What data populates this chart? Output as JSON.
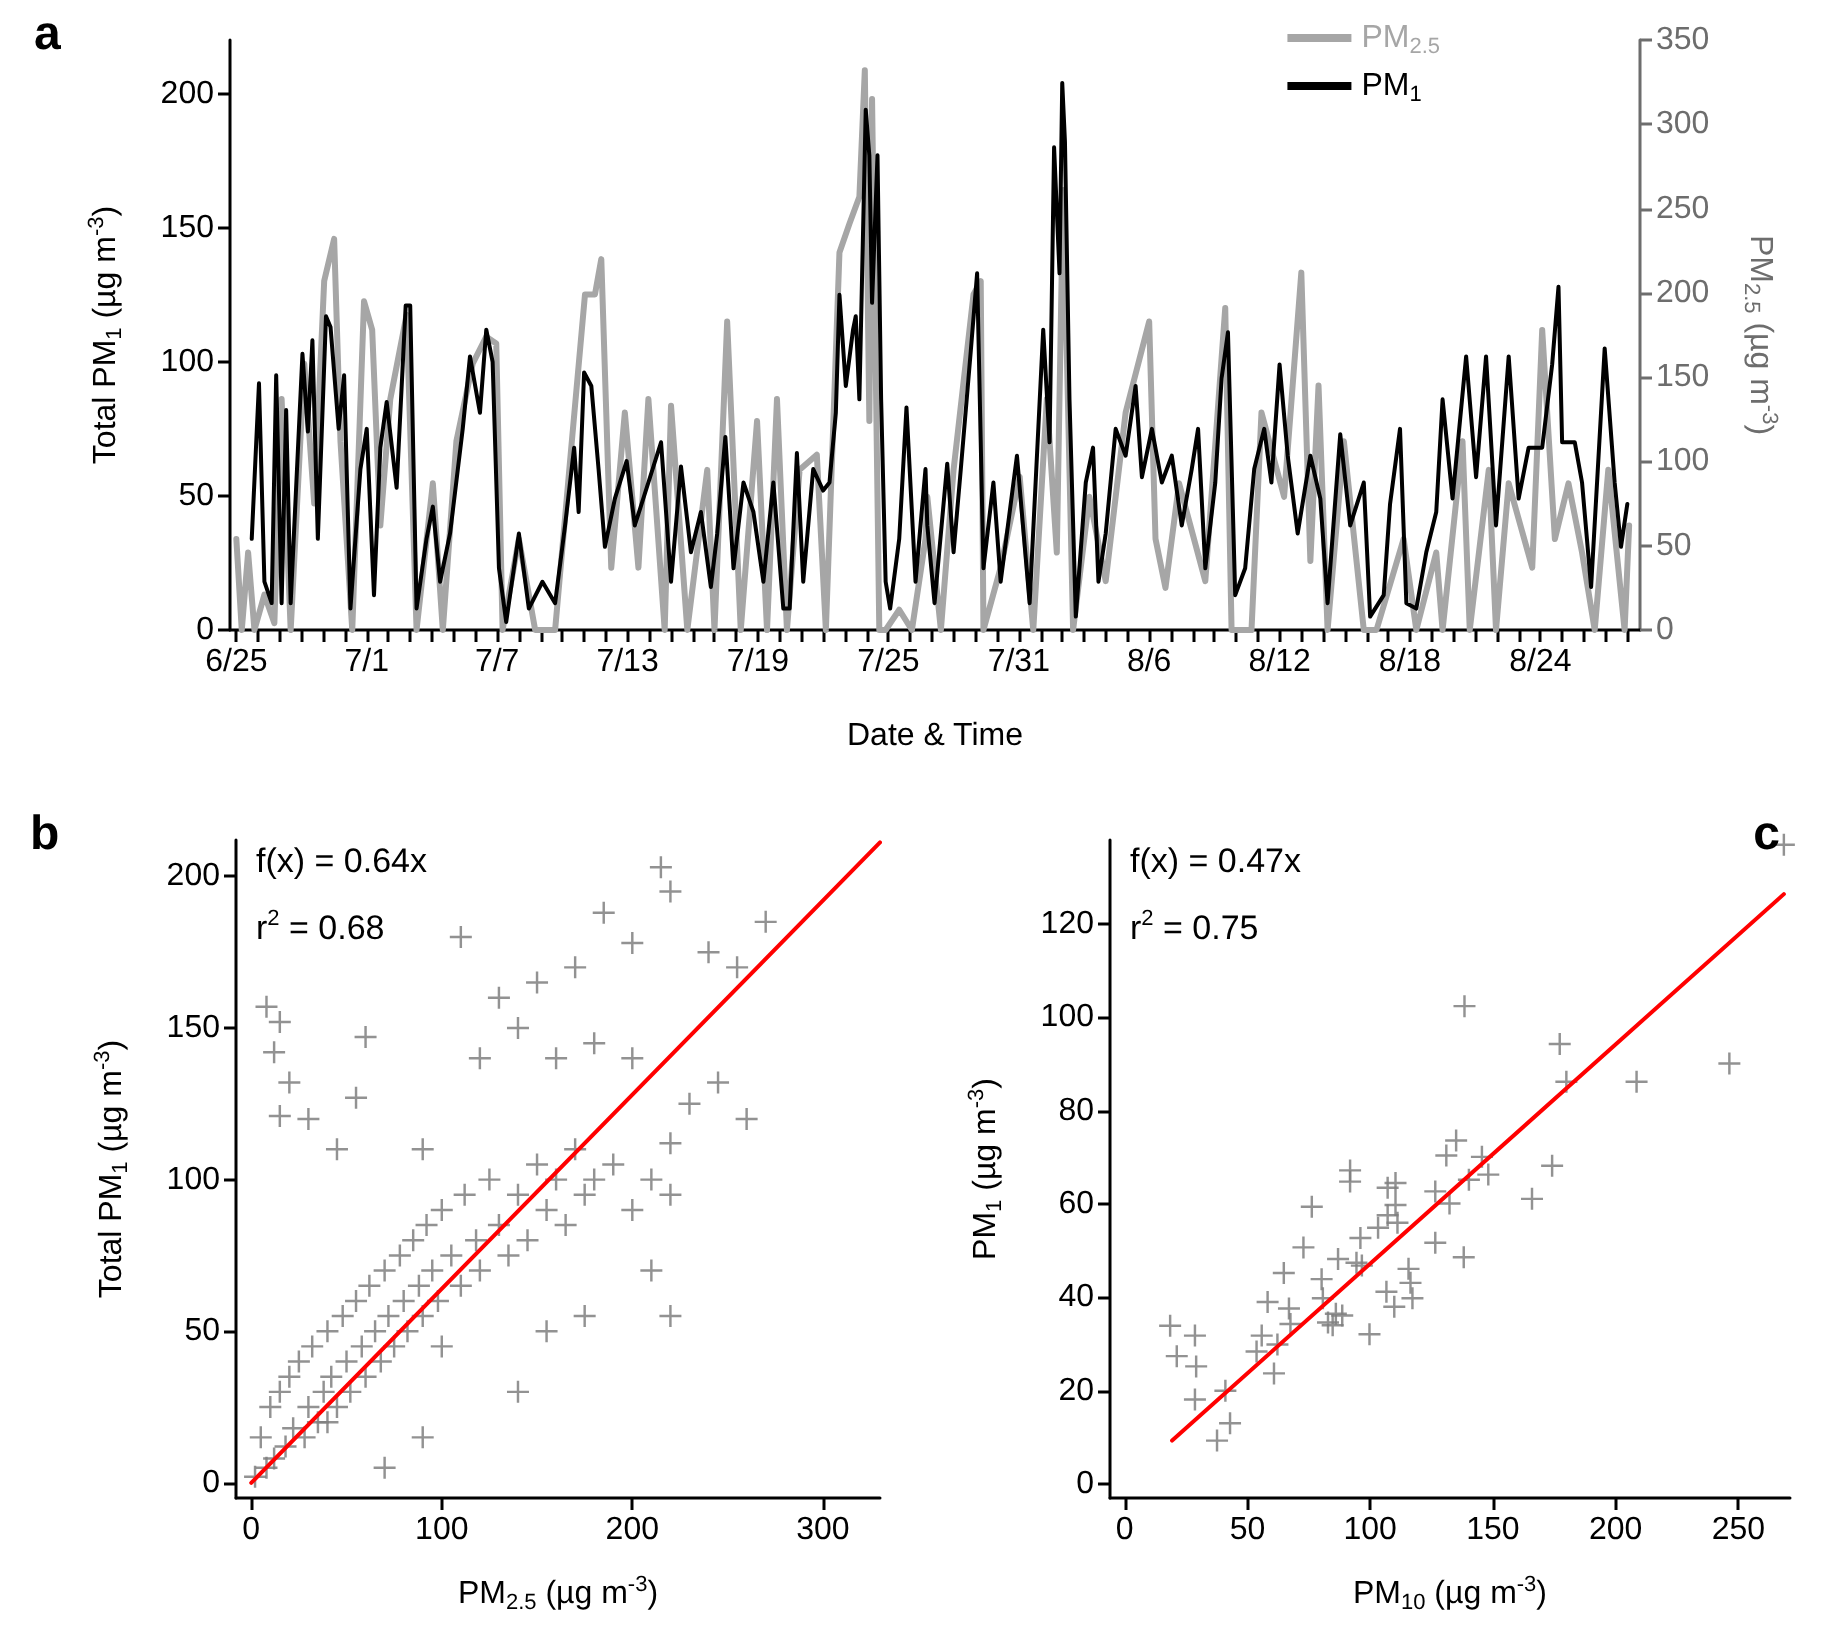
{
  "chart_data": [
    {
      "type": "line",
      "title": "a",
      "xlabel": "Date & Time",
      "ylabel": "Total PM$_{1}$ (µg m$^{-3}$)",
      "y2label": "PM$_{2.5}$ (µg m$^{-3}$)",
      "legend": "top right",
      "marker": "none",
      "line_style": "solid",
      "xlim": [
        "--06-24T17:00",
        "--08-28T14:00"
      ],
      "ylim": [
        0,
        220
      ],
      "yticks": [
        0,
        50,
        100,
        150,
        200
      ],
      "y2lim": [
        0,
        350
      ],
      "y2ticks": [
        0,
        50,
        100,
        150,
        200,
        250,
        300,
        350
      ],
      "xticks": [
        {
          "value": "--06-25",
          "label": "6/25"
        },
        {
          "value": "--06-26",
          "label": null
        },
        {
          "value": "--06-27",
          "label": null
        },
        {
          "value": "--06-28",
          "label": null
        },
        {
          "value": "--06-29",
          "label": null
        },
        {
          "value": "--06-30",
          "label": null
        },
        {
          "value": "--07-01",
          "label": "7/1"
        },
        {
          "value": "--07-02",
          "label": null
        },
        {
          "value": "--07-03",
          "label": null
        },
        {
          "value": "--07-04",
          "label": null
        },
        {
          "value": "--07-05",
          "label": null
        },
        {
          "value": "--07-06",
          "label": null
        },
        {
          "value": "--07-07",
          "label": "7/7"
        },
        {
          "value": "--07-08",
          "label": null
        },
        {
          "value": "--07-09",
          "label": null
        },
        {
          "value": "--07-10",
          "label": null
        },
        {
          "value": "--07-11",
          "label": null
        },
        {
          "value": "--07-12",
          "label": null
        },
        {
          "value": "--07-13",
          "label": "7/13"
        },
        {
          "value": "--07-14",
          "label": null
        },
        {
          "value": "--07-15",
          "label": null
        },
        {
          "value": "--07-16",
          "label": null
        },
        {
          "value": "--07-17",
          "label": null
        },
        {
          "value": "--07-18",
          "label": null
        },
        {
          "value": "--07-19",
          "label": "7/19"
        },
        {
          "value": "--07-20",
          "label": null
        },
        {
          "value": "--07-21",
          "label": null
        },
        {
          "value": "--07-22",
          "label": null
        },
        {
          "value": "--07-23",
          "label": null
        },
        {
          "value": "--07-24",
          "label": null
        },
        {
          "value": "--07-25",
          "label": "7/25"
        },
        {
          "value": "--07-26",
          "label": null
        },
        {
          "value": "--07-27",
          "label": null
        },
        {
          "value": "--07-28",
          "label": null
        },
        {
          "value": "--07-29",
          "label": null
        },
        {
          "value": "--07-30",
          "label": null
        },
        {
          "value": "--07-31",
          "label": "7/31"
        },
        {
          "value": "--08-01",
          "label": null
        },
        {
          "value": "--08-02",
          "label": null
        },
        {
          "value": "--08-03",
          "label": null
        },
        {
          "value": "--08-04",
          "label": null
        },
        {
          "value": "--08-05",
          "label": null
        },
        {
          "value": "--08-06",
          "label": "8/6"
        },
        {
          "value": "--08-07",
          "label": null
        },
        {
          "value": "--08-08",
          "label": null
        },
        {
          "value": "--08-09",
          "label": null
        },
        {
          "value": "--08-10",
          "label": null
        },
        {
          "value": "--08-11",
          "label": null
        },
        {
          "value": "--08-12",
          "label": "8/12"
        },
        {
          "value": "--08-13",
          "label": null
        },
        {
          "value": "--08-14",
          "label": null
        },
        {
          "value": "--08-15",
          "label": null
        },
        {
          "value": "--08-16",
          "label": null
        },
        {
          "value": "--08-17",
          "label": null
        },
        {
          "value": "--08-18",
          "label": "8/18"
        },
        {
          "value": "--08-19",
          "label": null
        },
        {
          "value": "--08-20",
          "label": null
        },
        {
          "value": "--08-21",
          "label": null
        },
        {
          "value": "--08-22",
          "label": null
        },
        {
          "value": "--08-23",
          "label": null
        },
        {
          "value": "--08-24",
          "label": "8/24"
        },
        {
          "value": "--08-25",
          "label": null
        },
        {
          "value": "--08-26",
          "label": null
        },
        {
          "value": "--08-27",
          "label": null
        },
        {
          "value": "--08-28",
          "label": null
        }
      ],
      "series": [
        {
          "name": "PM$_{2.5}$",
          "color": "#a6a6a6",
          "axis": "y2",
          "x": [
            "--06-25T00:00",
            "--06-25T06:00",
            "--06-25T13:00",
            "--06-25T20:00",
            "--06-26T07:00",
            "--06-26T18:00",
            "--06-27T02:00",
            "--06-27T12:00",
            "--06-28T03:00",
            "--06-28T14:00",
            "--06-29T01:00",
            "--06-29T12:00",
            "--06-29T19:00",
            "--06-30T08:00",
            "--06-30T21:00",
            "--07-01T06:00",
            "--07-01T15:00",
            "--07-02T02:00",
            "--07-02T20:00",
            "--07-03T07:00",
            "--07-04T01:00",
            "--07-04T12:00",
            "--07-05T03:00",
            "--07-05T21:00",
            "--07-06T12:00",
            "--07-06T23:00",
            "--07-07T06:00",
            "--07-08T00:00",
            "--07-08T18:00",
            "--07-09T16:00",
            "--07-10T07:00",
            "--07-11T01:00",
            "--07-11T12:00",
            "--07-11T19:00",
            "--07-12T06:00",
            "--07-12T21:00",
            "--07-13T12:00",
            "--07-13T23:00",
            "--07-14T17:00",
            "--07-15T00:00",
            "--07-15T18:00",
            "--07-16T16:00",
            "--07-17T00:00",
            "--07-17T14:00",
            "--07-18T05:00",
            "--07-18T23:00",
            "--07-19T10:00",
            "--07-19T21:00",
            "--07-20T08:00",
            "--07-20T22:00",
            "--07-21T17:00",
            "--07-22T03:00",
            "--07-22T18:00",
            "--07-23T05:00",
            "--07-23T16:00",
            "--07-23T22:00",
            "--07-24T03:00",
            "--07-24T06:00",
            "--07-24T14:00",
            "--07-24T21:00",
            "--07-25T12:00",
            "--07-26T02:00",
            "--07-26T17:00",
            "--07-26T19:00",
            "--07-27T10:00",
            "--07-28T00:00",
            "--07-28T22:00",
            "--07-29T06:00",
            "--07-29T09:00",
            "--07-30T04:00",
            "--07-31T01:00",
            "--07-31T16:00",
            "--08-01T07:00",
            "--08-01T18:00",
            "--08-02T01:00",
            "--08-02T12:00",
            "--08-03T06:00",
            "--08-04T00:00",
            "--08-04T22:00",
            "--08-06T00:00",
            "--08-06T07:00",
            "--08-06T18:00",
            "--08-07T09:00",
            "--08-08T14:00",
            "--08-09T12:00",
            "--08-09T19:00",
            "--08-10T17:00",
            "--08-11T04:00",
            "--08-12T05:00",
            "--08-13T00:00",
            "--08-13T10:00",
            "--08-13T19:00",
            "--08-14T05:00",
            "--08-14T23:00",
            "--08-15T21:00",
            "--08-16T11:00",
            "--08-17T17:00",
            "--08-18T07:00",
            "--08-19T05:00",
            "--08-19T12:00",
            "--08-20T10:00",
            "--08-20T18:00",
            "--08-21T15:00",
            "--08-21T23:00",
            "--08-22T13:00",
            "--08-23T15:00",
            "--08-24T02:00",
            "--08-24T16:00",
            "--08-25T07:00",
            "--08-25T22:00",
            "--08-26T12:00",
            "--08-27T03:00",
            "--08-27T21:00",
            "--08-28T02:00"
          ],
          "values": [
            54,
            0,
            46,
            0,
            21,
            4,
            137,
            0,
            158,
            75,
            207,
            232,
            112,
            0,
            195,
            178,
            62,
            137,
            187,
            0,
            87,
            0,
            112,
            158,
            174,
            170,
            0,
            54,
            0,
            0,
            91,
            199,
            199,
            220,
            37,
            129,
            37,
            137,
            0,
            133,
            0,
            95,
            0,
            183,
            0,
            124,
            0,
            137,
            0,
            95,
            104,
            0,
            224,
            241,
            257,
            332,
            124,
            315,
            0,
            0,
            12,
            0,
            54,
            79,
            0,
            95,
            199,
            207,
            0,
            37,
            91,
            0,
            137,
            46,
            261,
            0,
            79,
            29,
            129,
            183,
            54,
            25,
            87,
            29,
            191,
            0,
            0,
            129,
            79,
            212,
            41,
            145,
            0,
            112,
            0,
            0,
            54,
            0,
            46,
            0,
            112,
            0,
            95,
            0,
            87,
            37,
            178,
            54,
            87,
            46,
            0,
            95,
            0,
            62
          ]
        },
        {
          "name": "PM$_{1}$",
          "color": "#000000",
          "x": [
            "--06-25T17:00",
            "--06-26T01:00",
            "--06-26T07:00",
            "--06-26T15:00",
            "--06-26T20:00",
            "--06-27T02:00",
            "--06-27T07:00",
            "--06-27T12:00",
            "--06-28T01:00",
            "--06-28T07:00",
            "--06-28T12:00",
            "--06-28T18:00",
            "--06-29T03:00",
            "--06-29T08:00",
            "--06-29T17:00",
            "--06-29T23:00",
            "--06-30T06:00",
            "--06-30T17:00",
            "--07-01T00:00",
            "--07-01T08:00",
            "--07-01T15:00",
            "--07-01T22:00",
            "--07-02T09:00",
            "--07-02T19:00",
            "--07-03T00:00",
            "--07-03T07:00",
            "--07-03T18:00",
            "--07-04T01:00",
            "--07-04T09:00",
            "--07-04T20:00",
            "--07-05T10:00",
            "--07-05T18:00",
            "--07-06T05:00",
            "--07-06T12:00",
            "--07-06T19:00",
            "--07-07T02:00",
            "--07-07T10:00",
            "--07-08T00:00",
            "--07-08T11:00",
            "--07-09T02:00",
            "--07-09T16:00",
            "--07-10T03:00",
            "--07-10T13:00",
            "--07-10T18:00",
            "--07-11T00:00",
            "--07-11T08:00",
            "--07-11T16:00",
            "--07-11T23:00",
            "--07-12T10:00",
            "--07-12T23:00",
            "--07-13T08:00",
            "--07-13T23:00",
            "--07-14T13:00",
            "--07-15T00:00",
            "--07-15T11:00",
            "--07-15T22:00",
            "--07-16T09:00",
            "--07-16T20:00",
            "--07-17T03:00",
            "--07-17T12:00",
            "--07-17T21:00",
            "--07-18T08:00",
            "--07-18T19:00",
            "--07-19T06:00",
            "--07-19T17:00",
            "--07-20T04:00",
            "--07-20T11:00",
            "--07-20T19:00",
            "--07-21T02:00",
            "--07-21T13:00",
            "--07-22T00:00",
            "--07-22T07:00",
            "--07-22T14:00",
            "--07-22T18:00",
            "--07-23T01:00",
            "--07-23T09:00",
            "--07-23T12:00",
            "--07-23T16:00",
            "--07-23T23:00",
            "--07-24T03:00",
            "--07-24T06:00",
            "--07-24T12:00",
            "--07-24T16:00",
            "--07-24T21:00",
            "--07-25T02:00",
            "--07-25T12:00",
            "--07-25T20:00",
            "--07-26T06:00",
            "--07-26T17:00",
            "--07-26T19:00",
            "--07-27T03:00",
            "--07-27T17:00",
            "--07-28T00:00",
            "--07-28T08:00",
            "--07-28T19:00",
            "--07-29T02:00",
            "--07-29T09:00",
            "--07-29T20:00",
            "--07-30T04:00",
            "--07-30T22:00",
            "--07-31T12:00",
            "--08-01T03:00",
            "--08-01T10:00",
            "--08-01T15:00",
            "--08-01T21:00",
            "--08-02T00:00",
            "--08-02T03:00",
            "--08-02T08:00",
            "--08-02T15:00",
            "--08-03T02:00",
            "--08-03T10:00",
            "--08-03T16:00",
            "--08-04T00:00",
            "--08-04T11:00",
            "--08-04T22:00",
            "--08-05T09:00",
            "--08-05T16:00",
            "--08-06T03:00",
            "--08-06T14:00",
            "--08-07T01:00",
            "--08-07T12:00",
            "--08-07T23:00",
            "--08-08T06:00",
            "--08-08T14:00",
            "--08-09T01:00",
            "--08-09T08:00",
            "--08-09T15:00",
            "--08-09T23:00",
            "--08-10T10:00",
            "--08-10T20:00",
            "--08-11T07:00",
            "--08-11T15:00",
            "--08-12T00:00",
            "--08-12T09:00",
            "--08-12T20:00",
            "--08-13T10:00",
            "--08-13T21:00",
            "--08-14T05:00",
            "--08-14T19:00",
            "--08-15T06:00",
            "--08-15T21:00",
            "--08-16T04:00",
            "--08-16T19:00",
            "--08-17T02:00",
            "--08-17T13:00",
            "--08-17T20:00",
            "--08-18T07:00",
            "--08-18T18:00",
            "--08-19T05:00",
            "--08-19T12:00",
            "--08-19T23:00",
            "--08-20T14:00",
            "--08-21T01:00",
            "--08-21T12:00",
            "--08-21T23:00",
            "--08-22T13:00",
            "--08-23T00:00",
            "--08-23T11:00",
            "--08-24T02:00",
            "--08-24T13:00",
            "--08-24T20:00",
            "--08-25T00:00",
            "--08-25T14:00",
            "--08-25T22:00",
            "--08-26T08:00",
            "--08-26T23:00",
            "--08-27T10:00",
            "--08-27T17:00",
            "--08-28T00:00"
          ],
          "values": [
            34,
            92,
            18,
            10,
            95,
            10,
            82,
            10,
            103,
            74,
            108,
            34,
            117,
            113,
            75,
            95,
            8,
            60,
            75,
            13,
            68,
            85,
            53,
            121,
            121,
            8,
            34,
            46,
            18,
            36,
            75,
            102,
            81,
            112,
            100,
            23,
            3,
            36,
            8,
            18,
            10,
            39,
            68,
            44,
            96,
            91,
            60,
            31,
            49,
            63,
            39,
            55,
            70,
            18,
            61,
            29,
            44,
            16,
            36,
            72,
            23,
            55,
            44,
            18,
            55,
            8,
            8,
            66,
            18,
            60,
            52,
            55,
            81,
            125,
            91,
            112,
            117,
            86,
            194,
            177,
            122,
            177,
            86,
            18,
            8,
            34,
            83,
            18,
            60,
            39,
            10,
            62,
            29,
            60,
            104,
            133,
            23,
            55,
            18,
            65,
            10,
            112,
            70,
            180,
            133,
            204,
            182,
            86,
            5,
            55,
            68,
            18,
            36,
            75,
            65,
            91,
            57,
            75,
            55,
            65,
            39,
            60,
            75,
            23,
            55,
            94,
            111,
            13,
            23,
            60,
            75,
            55,
            99,
            65,
            36,
            65,
            49,
            10,
            73,
            39,
            55,
            5,
            13,
            47,
            75,
            10,
            8,
            29,
            44,
            86,
            49,
            102,
            57,
            102,
            39,
            102,
            49,
            68,
            68,
            99,
            128,
            70,
            70,
            55,
            16,
            105,
            55,
            31,
            47
          ]
        }
      ]
    },
    {
      "type": "scatter",
      "title": "b",
      "xlabel": "PM$_{2.5}$ (µg m$^{-3}$)",
      "ylabel": "Total PM$_{1}$ (µg m$^{-3}$)",
      "marker": "cross",
      "legend": false,
      "annotations": [
        "f(x) = 0.64x",
        "r$^{2}$ = 0.68"
      ],
      "xlim": [
        -8,
        330
      ],
      "xticks": [
        0,
        100,
        200,
        300
      ],
      "ylim": [
        -5,
        212
      ],
      "yticks": [
        0,
        50,
        100,
        150,
        200
      ],
      "series": [
        {
          "color": "#7f7f7f",
          "x": [
            2,
            5,
            8,
            10,
            12,
            15,
            18,
            20,
            22,
            25,
            28,
            30,
            32,
            35,
            38,
            40,
            42,
            45,
            48,
            50,
            52,
            55,
            58,
            60,
            62,
            65,
            68,
            70,
            72,
            75,
            78,
            80,
            82,
            85,
            88,
            90,
            92,
            95,
            98,
            100,
            105,
            110,
            112,
            118,
            120,
            125,
            130,
            135,
            140,
            145,
            150,
            155,
            160,
            165,
            170,
            175,
            180,
            190,
            200,
            210,
            220,
            8,
            12,
            15,
            20,
            15,
            30,
            60,
            55,
            45,
            90,
            110,
            130,
            150,
            170,
            185,
            200,
            215,
            220,
            240,
            255,
            270,
            260,
            245,
            230,
            220,
            210,
            220,
            175,
            155,
            140,
            100,
            90,
            70,
            40,
            200,
            180,
            160,
            140,
            120
          ],
          "values": [
            2,
            15,
            5,
            25,
            8,
            30,
            12,
            35,
            18,
            40,
            15,
            25,
            45,
            20,
            30,
            50,
            35,
            25,
            55,
            40,
            30,
            60,
            45,
            35,
            65,
            50,
            40,
            70,
            55,
            45,
            75,
            60,
            50,
            80,
            65,
            55,
            85,
            70,
            60,
            90,
            75,
            65,
            95,
            80,
            70,
            100,
            85,
            75,
            95,
            80,
            105,
            90,
            100,
            85,
            110,
            95,
            100,
            105,
            90,
            100,
            95,
            157,
            142,
            152,
            132,
            121,
            120,
            147,
            127,
            110,
            110,
            180,
            160,
            165,
            170,
            188,
            178,
            203,
            195,
            175,
            170,
            185,
            120,
            132,
            125,
            112,
            70,
            55,
            55,
            50,
            30,
            45,
            15,
            5,
            20,
            140,
            145,
            140,
            150,
            140
          ]
        },
        {
          "type": "line",
          "color": "#ff0000",
          "marker": "none",
          "x": [
            0,
            330
          ],
          "values": [
            0,
            211.2
          ]
        }
      ]
    },
    {
      "type": "scatter",
      "title": "c",
      "xlabel": "PM$_{10}$ (µg m$^{-3}$)",
      "ylabel": "PM$_{1}$ (µg m$^{-3}$)",
      "marker": "cross",
      "legend": false,
      "annotations": [
        "f(x) = 0.47x",
        "r$^{2}$ = 0.75"
      ],
      "xlim": [
        -6,
        271
      ],
      "xticks": [
        0,
        50,
        100,
        150,
        200,
        250
      ],
      "ylim": [
        -3,
        138
      ],
      "yticks": [
        0,
        20,
        40,
        60,
        80,
        100,
        120
      ],
      "series": [
        {
          "color": "#7f7f7f",
          "x": [
            18.5,
            21.2,
            28.6,
            29.1,
            28.6,
            37.6,
            41,
            42.9,
            53.7,
            55.8,
            58.2,
            60.8,
            62.2,
            64.8,
            66.9,
            67.5,
            72.8,
            76.2,
            80.2,
            80.7,
            82.8,
            84.7,
            86,
            86.9,
            88.6,
            91.8,
            91.8,
            94.4,
            96,
            96.6,
            99.7,
            103.2,
            106.6,
            107.1,
            107.1,
            109.8,
            110.3,
            110.3,
            111.1,
            115.6,
            116.4,
            117.2,
            126.5,
            126.5,
            131,
            132.3,
            135,
            138.1,
            138.4,
            140.2,
            145.5,
            148.1,
            165.9,
            174.1,
            177.2,
            179.9,
            208.5,
            246.3,
            268.5
          ],
          "values": [
            33.9,
            27.4,
            31.8,
            25.2,
            18.1,
            9.3,
            20,
            13,
            28.4,
            31.8,
            39,
            23.7,
            29.9,
            45.2,
            37.6,
            34.3,
            50.7,
            59.4,
            43.9,
            39.8,
            34.6,
            34,
            36.5,
            48.2,
            36.1,
            67.2,
            64.8,
            47.4,
            52.7,
            46.8,
            32.1,
            54.9,
            41.2,
            57.6,
            63.5,
            38,
            64.5,
            59.8,
            56,
            46.1,
            43.1,
            39.8,
            51.7,
            62.7,
            70.4,
            60.1,
            73.6,
            48.6,
            102.4,
            65.2,
            70.1,
            66.3,
            61.1,
            68.2,
            94.3,
            86.2,
            86.2,
            90.1,
            137
          ]
        },
        {
          "type": "line",
          "color": "#ff0000",
          "marker": "none",
          "x": [
            19.3,
            268.5
          ],
          "values": [
            9.3,
            126.4
          ]
        }
      ]
    }
  ]
}
